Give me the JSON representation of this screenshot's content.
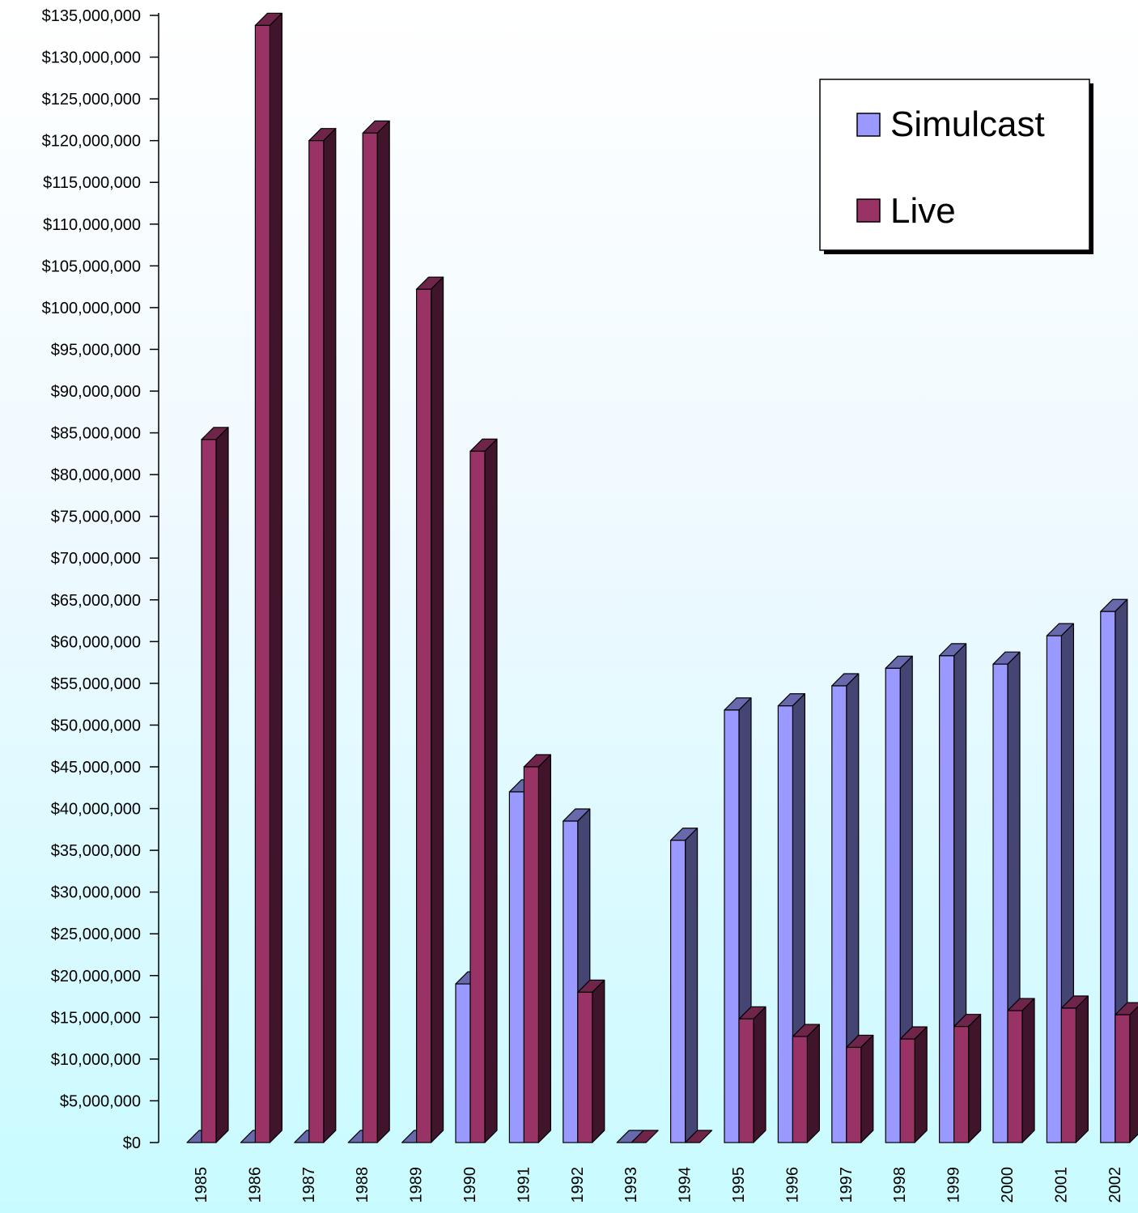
{
  "chart_data": {
    "type": "bar",
    "style": "3d-clustered-columns",
    "categories": [
      "1985",
      "1986",
      "1987",
      "1988",
      "1989",
      "1990",
      "1991",
      "1992",
      "1993",
      "1994",
      "1995",
      "1996",
      "1997",
      "1998",
      "1999",
      "2000",
      "2001",
      "2002"
    ],
    "series": [
      {
        "name": "Simulcast",
        "color": "#9999ff",
        "values": [
          0,
          0,
          0,
          0,
          0,
          19000000,
          42000000,
          38500000,
          0,
          36200000,
          51800000,
          52300000,
          54700000,
          56800000,
          58300000,
          57300000,
          60700000,
          63600000
        ]
      },
      {
        "name": "Live",
        "color": "#993366",
        "values": [
          84200000,
          133800000,
          120000000,
          120900000,
          102200000,
          82800000,
          45000000,
          18000000,
          0,
          0,
          14800000,
          12700000,
          11400000,
          12400000,
          13900000,
          15800000,
          16100000,
          15300000
        ]
      }
    ],
    "ylim": [
      0,
      135000000
    ],
    "y_ticks": [
      "$0",
      "$5,000,000",
      "$10,000,000",
      "$15,000,000",
      "$20,000,000",
      "$25,000,000",
      "$30,000,000",
      "$35,000,000",
      "$40,000,000",
      "$45,000,000",
      "$50,000,000",
      "$55,000,000",
      "$60,000,000",
      "$65,000,000",
      "$70,000,000",
      "$75,000,000",
      "$80,000,000",
      "$85,000,000",
      "$90,000,000",
      "$95,000,000",
      "$100,000,000",
      "$105,000,000",
      "$110,000,000",
      "$115,000,000",
      "$120,000,000",
      "$125,000,000",
      "$130,000,000",
      "$135,000,000"
    ],
    "title": "",
    "xlabel": "",
    "ylabel": "",
    "grid": false,
    "legend_position": "top-right"
  }
}
